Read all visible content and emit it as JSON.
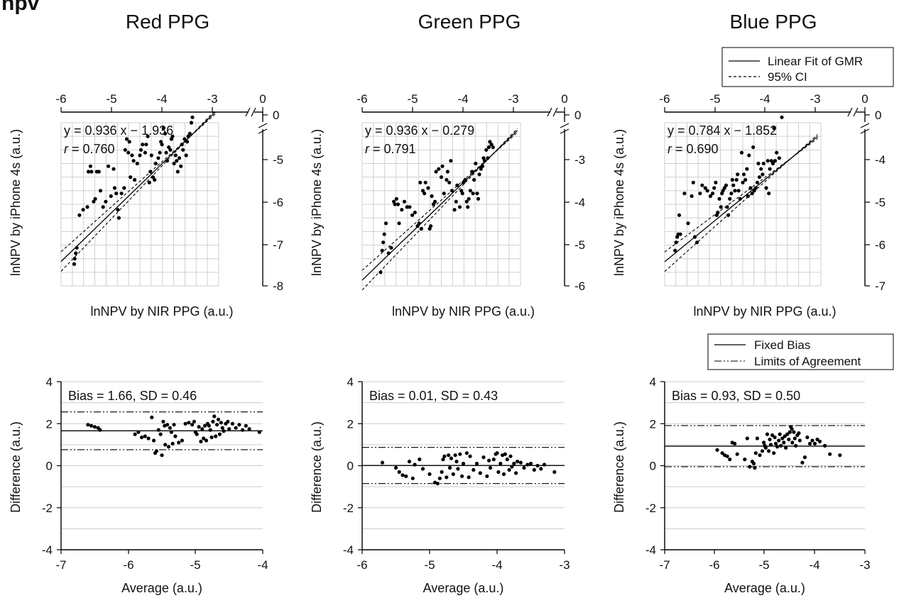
{
  "panel_label": "npv",
  "chart_data": [
    {
      "type": "scatter",
      "title": "Red PPG",
      "xlabel": "lnNPV by NIR PPG (a.u.)",
      "ylabel": "lnNPV by iPhone 4s (a.u.)",
      "xlim": [
        -6,
        -3
      ],
      "ylim": [
        -8,
        -5
      ],
      "xticks": [
        "-6",
        "-5",
        "-4",
        "-3",
        "0"
      ],
      "yticks": [
        "0",
        "-5",
        "-6",
        "-7",
        "-8"
      ],
      "axis_breaks": true,
      "equation": "y = 0.936 x − 1.936",
      "r_label": "r",
      "r_value": "= 0.760",
      "fit": {
        "slope": 0.936,
        "intercept": -1.936,
        "ci_half_width": 0.18
      },
      "x": [
        -5.75,
        -5.74,
        -5.72,
        -5.7,
        -5.65,
        -5.58,
        -5.5,
        -5.48,
        -5.44,
        -5.42,
        -5.38,
        -5.35,
        -5.32,
        -5.28,
        -5.25,
        -5.2,
        -5.15,
        -5.1,
        -5.05,
        -5.0,
        -4.98,
        -4.95,
        -4.92,
        -4.9,
        -4.85,
        -4.8,
        -4.78,
        -4.75,
        -4.72,
        -4.7,
        -4.68,
        -4.65,
        -4.62,
        -4.6,
        -4.55,
        -4.5,
        -4.48,
        -4.45,
        -4.4,
        -4.38,
        -4.35,
        -4.32,
        -4.3,
        -4.28,
        -4.25,
        -4.22,
        -4.2,
        -4.15,
        -4.12,
        -4.1,
        -4.08,
        -4.05,
        -4.02,
        -4.0,
        -3.98,
        -3.95,
        -3.92,
        -3.9,
        -3.88,
        -3.85,
        -3.82,
        -3.8,
        -3.78,
        -3.75,
        -3.72,
        -3.7,
        -3.68,
        -3.65,
        -3.62,
        -3.6,
        -3.58,
        -3.55,
        -3.52,
        -3.5
      ],
      "y": [
        -7.6,
        -7.5,
        -7.4,
        -7.3,
        -6.7,
        -6.6,
        -6.55,
        -5.9,
        -5.8,
        -5.9,
        -6.45,
        -6.4,
        -5.9,
        -5.9,
        -6.25,
        -6.55,
        -6.45,
        -5.8,
        -6.35,
        -5.85,
        -6.2,
        -6.3,
        -6.6,
        -6.75,
        -6.3,
        -6.2,
        -5.5,
        -5.3,
        -5.55,
        -5.35,
        -6.0,
        -5.6,
        -5.7,
        -6.05,
        -5.75,
        -5.6,
        -5.5,
        -5.4,
        -5.55,
        -5.4,
        -5.25,
        -6.1,
        -5.9,
        -5.6,
        -6.0,
        -6.05,
        -5.75,
        -5.65,
        -5.55,
        -5.35,
        -5.4,
        -5.1,
        -5.2,
        -5.55,
        -5.7,
        -5.45,
        -5.5,
        -5.3,
        -5.25,
        -5.75,
        -5.6,
        -5.7,
        -5.9,
        -5.65,
        -5.8,
        -5.4,
        -5.5,
        -5.3,
        -5.6,
        -5.35,
        -5.25,
        -5.2,
        -5.0,
        -4.9
      ]
    },
    {
      "type": "scatter",
      "title": "Green PPG",
      "xlabel": "lnNPV by NIR PPG (a.u.)",
      "ylabel": "lnNPV by iPhone 4s (a.u.)",
      "xlim": [
        -6,
        -3
      ],
      "ylim": [
        -6,
        -3
      ],
      "xticks": [
        "-6",
        "-5",
        "-4",
        "-3",
        "0"
      ],
      "yticks": [
        "0",
        "-3",
        "-4",
        "-5",
        "-6"
      ],
      "axis_breaks": true,
      "equation": "y = 0.936 x − 0.279",
      "r_label": "r",
      "r_value": "= 0.791",
      "fit": {
        "slope": 0.936,
        "intercept": -0.279,
        "ci_half_width": 0.18
      },
      "x": [
        -5.65,
        -5.62,
        -5.6,
        -5.58,
        -5.55,
        -5.5,
        -5.45,
        -5.4,
        -5.38,
        -5.35,
        -5.32,
        -5.3,
        -5.25,
        -5.2,
        -5.15,
        -5.1,
        -5.05,
        -5.0,
        -4.95,
        -4.92,
        -4.9,
        -4.88,
        -4.85,
        -4.82,
        -4.8,
        -4.75,
        -4.72,
        -4.7,
        -4.68,
        -4.65,
        -4.62,
        -4.6,
        -4.55,
        -4.5,
        -4.48,
        -4.45,
        -4.4,
        -4.38,
        -4.35,
        -4.32,
        -4.3,
        -4.25,
        -4.22,
        -4.2,
        -4.15,
        -4.12,
        -4.1,
        -4.08,
        -4.05,
        -4.02,
        -4.0,
        -3.98,
        -3.95,
        -3.92,
        -3.9,
        -3.88,
        -3.85,
        -3.82,
        -3.8,
        -3.78,
        -3.75,
        -3.72,
        -3.7,
        -3.68,
        -3.65,
        -3.62,
        -3.6,
        -3.58,
        -3.55,
        -3.52
      ],
      "y": [
        -5.75,
        -5.35,
        -5.2,
        -5.05,
        -4.85,
        -5.4,
        -5.3,
        -4.45,
        -4.5,
        -4.4,
        -4.5,
        -4.85,
        -4.6,
        -4.45,
        -4.55,
        -4.55,
        -4.7,
        -4.65,
        -4.9,
        -4.85,
        -4.1,
        -4.95,
        -4.25,
        -4.3,
        -4.1,
        -4.2,
        -4.95,
        -4.9,
        -4.35,
        -4.5,
        -4.45,
        -3.9,
        -3.85,
        -4.0,
        -3.8,
        -4.3,
        -4.05,
        -3.9,
        -4.1,
        -3.7,
        -4.25,
        -4.6,
        -4.45,
        -4.15,
        -4.55,
        -4.25,
        -4.3,
        -4.1,
        -4.05,
        -4.45,
        -4.55,
        -4.4,
        -4.25,
        -3.9,
        -4.3,
        -4.05,
        -3.75,
        -4.3,
        -4.4,
        -3.95,
        -3.85,
        -3.8,
        -3.65,
        -3.7,
        -3.5,
        -3.65,
        -3.45,
        -3.35,
        -3.4,
        -3.45
      ]
    },
    {
      "type": "scatter",
      "title": "Blue PPG",
      "xlabel": "lnNPV by NIR PPG (a.u.)",
      "ylabel": "lnNPV by iPhone 4s (a.u.)",
      "xlim": [
        -6,
        -3
      ],
      "ylim": [
        -7,
        -4
      ],
      "xticks": [
        "-6",
        "-5",
        "-4",
        "-3",
        "0"
      ],
      "yticks": [
        "0",
        "-4",
        "-5",
        "-6",
        "-7"
      ],
      "axis_breaks": true,
      "equation": "y = 0.784 x − 1.852",
      "r_label": "r",
      "r_value": "= 0.690",
      "fit": {
        "slope": 0.784,
        "intercept": -1.852,
        "ci_half_width": 0.18
      },
      "legend": [
        "Linear Fit of GMR",
        "95% CI"
      ],
      "x": [
        -5.8,
        -5.78,
        -5.76,
        -5.74,
        -5.72,
        -5.7,
        -5.62,
        -5.55,
        -5.48,
        -5.45,
        -5.42,
        -5.38,
        -5.32,
        -5.28,
        -5.22,
        -5.18,
        -5.12,
        -5.08,
        -5.05,
        -5.02,
        -5.0,
        -4.98,
        -4.95,
        -4.92,
        -4.9,
        -4.88,
        -4.85,
        -4.82,
        -4.8,
        -4.78,
        -4.75,
        -4.72,
        -4.7,
        -4.68,
        -4.65,
        -4.62,
        -4.6,
        -4.58,
        -4.55,
        -4.52,
        -4.5,
        -4.48,
        -4.45,
        -4.42,
        -4.4,
        -4.38,
        -4.35,
        -4.32,
        -4.3,
        -4.28,
        -4.25,
        -4.22,
        -4.2,
        -4.18,
        -4.15,
        -4.12,
        -4.1,
        -4.05,
        -4.02,
        -4.0,
        -3.98,
        -3.95,
        -3.92,
        -3.9,
        -3.88,
        -3.85,
        -3.8,
        -3.75
      ],
      "y": [
        -6.35,
        -6.2,
        -6.1,
        -6.05,
        -5.7,
        -6.05,
        -5.3,
        -5.85,
        -5.35,
        -5.1,
        -6.1,
        -6.2,
        -5.3,
        -5.15,
        -5.2,
        -5.25,
        -5.35,
        -5.3,
        -5.2,
        -5.1,
        -5.7,
        -5.65,
        -5.4,
        -5.55,
        -5.3,
        -5.25,
        -5.2,
        -5.15,
        -5.55,
        -5.7,
        -5.4,
        -5.3,
        -5.05,
        -5.15,
        -5.25,
        -5.05,
        -4.95,
        -5.25,
        -5.4,
        -4.55,
        -5.1,
        -4.95,
        -5.05,
        -4.85,
        -5.35,
        -4.6,
        -5.2,
        -5.3,
        -4.45,
        -5.25,
        -5.2,
        -5.1,
        -4.75,
        -5.0,
        -4.85,
        -4.95,
        -4.75,
        -5.2,
        -4.7,
        -5.3,
        -4.85,
        -4.7,
        -4.75,
        -4.1,
        -4.7,
        -4.55,
        -4.65,
        -3.9
      ]
    },
    {
      "type": "scatter",
      "xlabel": "Average (a.u.)",
      "ylabel": "Difference (a.u.)",
      "xlim": [
        -7,
        -4
      ],
      "ylim": [
        -4,
        4
      ],
      "xticks": [
        "-7",
        "-6",
        "-5",
        "-4"
      ],
      "yticks": [
        "4",
        "2",
        "0",
        "-2",
        "-4"
      ],
      "annotation": "Bias = 1.66, SD = 0.46",
      "bias": 1.66,
      "loa": [
        0.76,
        2.56
      ],
      "x": [
        -6.6,
        -6.55,
        -6.5,
        -6.45,
        -6.42,
        -5.9,
        -5.85,
        -5.8,
        -5.75,
        -5.7,
        -5.65,
        -5.62,
        -5.6,
        -5.58,
        -5.55,
        -5.52,
        -5.5,
        -5.48,
        -5.46,
        -5.45,
        -5.42,
        -5.4,
        -5.38,
        -5.36,
        -5.34,
        -5.32,
        -5.3,
        -5.25,
        -5.2,
        -5.15,
        -5.1,
        -5.05,
        -5.02,
        -5.0,
        -4.98,
        -4.95,
        -4.92,
        -4.9,
        -4.88,
        -4.86,
        -4.84,
        -4.82,
        -4.8,
        -4.78,
        -4.76,
        -4.74,
        -4.72,
        -4.7,
        -4.68,
        -4.66,
        -4.64,
        -4.62,
        -4.6,
        -4.58,
        -4.55,
        -4.52,
        -4.5,
        -4.45,
        -4.4,
        -4.35,
        -4.3,
        -4.25,
        -4.2,
        -4.05
      ],
      "y": [
        1.95,
        1.9,
        1.85,
        1.8,
        1.7,
        1.5,
        1.6,
        1.35,
        1.4,
        1.3,
        2.3,
        1.2,
        0.6,
        0.7,
        1.7,
        1.5,
        0.5,
        2.1,
        1.9,
        1.0,
        1.95,
        0.9,
        1.8,
        1.6,
        1.05,
        1.95,
        1.4,
        1.1,
        1.2,
        2.0,
        2.05,
        1.95,
        2.1,
        1.6,
        1.5,
        1.85,
        1.15,
        1.75,
        1.3,
        1.9,
        1.2,
        2.0,
        1.9,
        1.7,
        1.35,
        2.1,
        2.35,
        1.4,
        1.95,
        2.2,
        1.5,
        2.05,
        1.8,
        1.65,
        2.0,
        2.1,
        1.75,
        2.0,
        1.8,
        1.95,
        1.7,
        1.9,
        1.75,
        1.6
      ]
    },
    {
      "type": "scatter",
      "xlabel": "Average (a.u.)",
      "ylabel": "Difference (a.u.)",
      "xlim": [
        -6,
        -3
      ],
      "ylim": [
        -4,
        4
      ],
      "xticks": [
        "-6",
        "-5",
        "-4",
        "-3"
      ],
      "yticks": [
        "4",
        "2",
        "0",
        "-2",
        "-4"
      ],
      "annotation": "Bias = 0.01, SD = 0.43",
      "bias": 0.01,
      "loa": [
        -0.85,
        0.87
      ],
      "x": [
        -5.7,
        -5.5,
        -5.45,
        -5.4,
        -5.35,
        -5.3,
        -5.25,
        -5.22,
        -5.15,
        -5.1,
        -5.0,
        -4.92,
        -4.88,
        -4.85,
        -4.82,
        -4.8,
        -4.78,
        -4.75,
        -4.72,
        -4.7,
        -4.68,
        -4.65,
        -4.62,
        -4.6,
        -4.58,
        -4.55,
        -4.52,
        -4.5,
        -4.45,
        -4.42,
        -4.4,
        -4.35,
        -4.3,
        -4.25,
        -4.2,
        -4.15,
        -4.12,
        -4.1,
        -4.05,
        -4.02,
        -4.0,
        -3.98,
        -3.95,
        -3.92,
        -3.9,
        -3.88,
        -3.85,
        -3.82,
        -3.8,
        -3.78,
        -3.75,
        -3.72,
        -3.7,
        -3.65,
        -3.6,
        -3.55,
        -3.5,
        -3.45,
        -3.4,
        -3.35,
        -3.3,
        -3.15
      ],
      "y": [
        0.15,
        -0.1,
        -0.3,
        -0.45,
        -0.5,
        0.2,
        -0.6,
        0.05,
        0.3,
        -0.15,
        -0.4,
        -0.8,
        -0.85,
        -0.6,
        -0.3,
        0.3,
        0.45,
        -0.55,
        0.5,
        -0.1,
        0.35,
        -0.4,
        0.5,
        0.2,
        -0.15,
        0.55,
        -0.5,
        0.1,
        0.6,
        -0.55,
        0.45,
        -0.2,
        0.1,
        -0.35,
        0.4,
        -0.5,
        0.25,
        -0.1,
        0.3,
        0.55,
        0.6,
        -0.3,
        0.1,
        0.5,
        -0.4,
        0.55,
        0.3,
        -0.2,
        0.45,
        -0.05,
        0.1,
        -0.35,
        0.2,
        0.15,
        -0.1,
        0.05,
        0.1,
        -0.2,
        0.0,
        -0.15,
        0.05,
        -0.3
      ]
    },
    {
      "type": "scatter",
      "xlabel": "Average (a.u.)",
      "ylabel": "Difference (a.u.)",
      "xlim": [
        -7,
        -3
      ],
      "ylim": [
        -4,
        4
      ],
      "xticks": [
        "-7",
        "-6",
        "-5",
        "-4",
        "-3"
      ],
      "yticks": [
        "4",
        "2",
        "0",
        "-2",
        "-4"
      ],
      "annotation": "Bias = 0.93, SD = 0.50",
      "bias": 0.93,
      "loa": [
        -0.05,
        1.91
      ],
      "legend": [
        "Fixed Bias",
        "Limits of Agreement"
      ],
      "x": [
        -5.95,
        -5.85,
        -5.8,
        -5.75,
        -5.7,
        -5.65,
        -5.6,
        -5.55,
        -5.4,
        -5.35,
        -5.3,
        -5.25,
        -5.22,
        -5.2,
        -5.18,
        -5.15,
        -5.1,
        -5.05,
        -5.02,
        -5.0,
        -4.98,
        -4.95,
        -4.92,
        -4.9,
        -4.88,
        -4.85,
        -4.82,
        -4.8,
        -4.78,
        -4.75,
        -4.72,
        -4.7,
        -4.68,
        -4.65,
        -4.62,
        -4.6,
        -4.58,
        -4.55,
        -4.52,
        -4.5,
        -4.48,
        -4.46,
        -4.45,
        -4.42,
        -4.4,
        -4.38,
        -4.35,
        -4.32,
        -4.3,
        -4.25,
        -4.2,
        -4.15,
        -4.1,
        -4.05,
        -4.0,
        -3.95,
        -3.9,
        -3.8,
        -3.7,
        -3.5
      ],
      "y": [
        0.75,
        0.6,
        0.5,
        0.45,
        0.3,
        1.1,
        1.05,
        0.55,
        0.3,
        1.3,
        -0.05,
        0.2,
        0.1,
        -0.1,
        0.6,
        1.3,
        0.5,
        0.7,
        1.1,
        0.95,
        0.85,
        1.5,
        0.7,
        1.25,
        1.0,
        1.45,
        0.6,
        1.35,
        1.05,
        0.9,
        1.2,
        1.5,
        0.95,
        1.3,
        1.1,
        1.4,
        0.85,
        1.5,
        1.25,
        1.6,
        1.85,
        1.75,
        1.1,
        1.6,
        1.3,
        0.95,
        1.45,
        1.55,
        1.2,
        0.15,
        0.4,
        1.35,
        1.05,
        1.2,
        1.05,
        1.25,
        1.15,
        0.95,
        0.55,
        0.5
      ]
    }
  ]
}
